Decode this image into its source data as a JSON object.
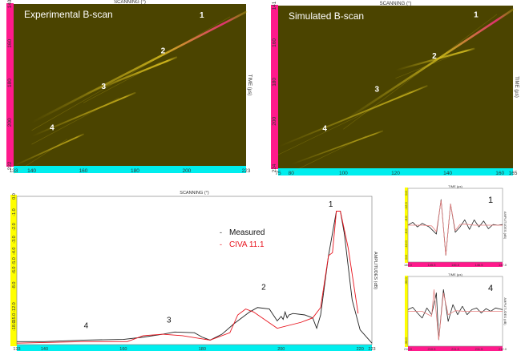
{
  "chart_data": [
    {
      "type": "heatmap",
      "title": "Experimental B-scan",
      "xlabel": "SCANNING (°)",
      "ylabel": "TIME (µs)",
      "xlim": [
        133,
        223
      ],
      "ylim": [
        140,
        222
      ],
      "xticks": [
        "133",
        "140",
        "160",
        "180",
        "200",
        "223"
      ],
      "xtick_values": [
        133,
        140,
        160,
        180,
        200,
        223
      ],
      "yticks": [
        "140",
        "160",
        "180",
        "200",
        "222"
      ],
      "ytick_values": [
        140,
        160,
        180,
        200,
        222
      ],
      "echoes": [
        {
          "label": "1",
          "label_at": [
            205,
            147
          ],
          "from": [
            140,
            200
          ],
          "to": [
            223,
            144
          ],
          "strength": 1.0
        },
        {
          "label": "2",
          "label_at": [
            190,
            165
          ],
          "from": [
            160,
            186
          ],
          "to": [
            196,
            167
          ],
          "strength": 0.8
        },
        {
          "label": "3",
          "label_at": [
            167,
            183
          ],
          "from": [
            140,
            207
          ],
          "to": [
            180,
            185
          ],
          "strength": 0.6
        },
        {
          "label": "4",
          "label_at": [
            147,
            204
          ],
          "from": [
            133,
            222
          ],
          "to": [
            160,
            206
          ],
          "strength": 0.5
        }
      ],
      "colors": {
        "background": "#4b4400",
        "echo": "#e0c420",
        "peak": "#e03070",
        "yaxis": "#ff1a8c",
        "xaxis": "#00eeee"
      }
    },
    {
      "type": "heatmap",
      "title": "Simulated B-scan",
      "xlabel": "SCANNING (°)",
      "ylabel": "TIME (µs)",
      "xlim": [
        75,
        165
      ],
      "ylim": [
        141,
        224
      ],
      "xticks": [
        "75",
        "80",
        "100",
        "120",
        "140",
        "160",
        "165"
      ],
      "xtick_values": [
        75,
        80,
        100,
        120,
        140,
        160,
        165
      ],
      "yticks": [
        "141",
        "160",
        "180",
        "200",
        "224"
      ],
      "ytick_values": [
        141,
        160,
        180,
        200,
        224
      ],
      "echoes": [
        {
          "label": "1",
          "label_at": [
            150,
            147
          ],
          "from": [
            100,
            200
          ],
          "to": [
            165,
            143
          ],
          "strength": 1.0
        },
        {
          "label": "2",
          "label_at": [
            134,
            168
          ],
          "from": [
            120,
            174
          ],
          "to": [
            150,
            163
          ],
          "strength": 0.8
        },
        {
          "label": "3",
          "label_at": [
            112,
            185
          ],
          "from": [
            75,
            213
          ],
          "to": [
            132,
            182
          ],
          "strength": 0.6
        },
        {
          "label": "4",
          "label_at": [
            92,
            205
          ],
          "from": [
            80,
            222
          ],
          "to": [
            115,
            205
          ],
          "strength": 0.45
        }
      ],
      "colors": {
        "background": "#4b4400",
        "echo": "#d8c020",
        "peak": "#e03070",
        "yaxis": "#ff1a8c",
        "xaxis": "#00eeee"
      }
    },
    {
      "type": "line",
      "title": "SCANNING (°)",
      "xlabel": "SCANNING (°)",
      "ylabel": "AMPLITUDES (dB)",
      "xlim": [
        133,
        223
      ],
      "ylim": [
        0,
        1
      ],
      "xticks": [
        "133",
        "140",
        "160",
        "180",
        "200",
        "220",
        "223"
      ],
      "xtick_values": [
        133,
        140,
        160,
        180,
        200,
        220,
        223
      ],
      "yticks": [
        "0.0",
        "-1.0",
        "-2.0",
        "-3.0",
        "-4.0",
        "-5.0",
        "-6.0",
        "-8.0",
        "-12.0",
        "-15.0",
        "-18.0"
      ],
      "ytick_values_db": [
        0,
        -1,
        -2,
        -3,
        -4,
        -5,
        -6,
        -8,
        -12,
        -15,
        -18
      ],
      "legend": {
        "placement": "top-right",
        "entries": [
          "Measured",
          "CIVA 11.1"
        ]
      },
      "annotations": [
        {
          "label": "1",
          "at": [
            212,
            0.93
          ]
        },
        {
          "label": "2",
          "at": [
            195,
            0.37
          ]
        },
        {
          "label": "3",
          "at": [
            171,
            0.15
          ]
        },
        {
          "label": "4",
          "at": [
            150,
            0.11
          ]
        }
      ],
      "series": [
        {
          "name": "Measured",
          "color": "#222222",
          "x": [
            133,
            140,
            150,
            160,
            165,
            170,
            173,
            178,
            180,
            182,
            185,
            188,
            192,
            194,
            197,
            198,
            199,
            200,
            200.5,
            201,
            201.5,
            202,
            203,
            206,
            208,
            209,
            210,
            212,
            214,
            215,
            216,
            218,
            220,
            223
          ],
          "y": [
            0.02,
            0.02,
            0.03,
            0.035,
            0.05,
            0.07,
            0.085,
            0.08,
            0.05,
            0.03,
            0.07,
            0.14,
            0.22,
            0.25,
            0.24,
            0.2,
            0.16,
            0.19,
            0.17,
            0.22,
            0.18,
            0.2,
            0.21,
            0.2,
            0.18,
            0.11,
            0.2,
            0.6,
            0.9,
            0.9,
            0.75,
            0.3,
            0.1,
            0.01
          ]
        },
        {
          "name": "CIVA 11.1",
          "color": "#e8141e",
          "x": [
            133,
            150,
            161,
            165,
            170,
            175,
            182,
            187,
            189,
            191,
            193,
            199,
            205,
            208,
            210,
            212,
            213,
            214,
            215,
            217,
            219.5
          ],
          "y": [
            0.01,
            0.02,
            0.02,
            0.06,
            0.07,
            0.06,
            0.03,
            0.08,
            0.2,
            0.24,
            0.22,
            0.11,
            0.15,
            0.18,
            0.25,
            0.6,
            0.62,
            0.9,
            0.9,
            0.65,
            0.21
          ]
        }
      ]
    },
    {
      "type": "line",
      "title": "TIME (µs)",
      "label": "1",
      "xlabel": "TIME (µs)",
      "ylabel": "AMPLITUDES (dB)",
      "xlim": [
        145.0,
        147.0
      ],
      "ylim": [
        -1,
        1
      ],
      "xticks": [
        "145.0",
        "145.5",
        "146.0",
        "146.5",
        "147.0"
      ],
      "xtick_values": [
        145.0,
        145.5,
        146.0,
        146.5,
        147.0
      ],
      "yticks": [
        "0.0",
        "-12.0",
        "-6.0",
        "-6.0",
        "-12.0",
        "0.0"
      ],
      "series": [
        {
          "name": "Measured",
          "color": "#222222",
          "x": [
            145.0,
            145.1,
            145.2,
            145.3,
            145.45,
            145.6,
            145.7,
            145.8,
            145.9,
            146.0,
            146.1,
            146.2,
            146.3,
            146.4,
            146.5,
            146.6,
            146.7,
            146.8,
            146.9,
            147.0
          ],
          "y": [
            0,
            0.08,
            -0.05,
            0.05,
            -0.05,
            -0.25,
            0.72,
            -0.85,
            0.6,
            -0.2,
            -0.05,
            0.15,
            -0.12,
            0.15,
            -0.05,
            0.12,
            -0.1,
            0.02,
            0,
            0.02
          ]
        },
        {
          "name": "CIVA 11.1",
          "color": "#e88080",
          "x": [
            145.0,
            145.3,
            145.5,
            145.6,
            145.7,
            145.8,
            145.9,
            146.0,
            146.1,
            146.2,
            146.4,
            146.7,
            147.0
          ],
          "y": [
            0,
            0,
            -0.02,
            -0.18,
            0.7,
            -0.85,
            0.6,
            -0.15,
            0.02,
            0.03,
            0,
            0,
            0
          ]
        }
      ]
    },
    {
      "type": "line",
      "title": "TIME (µs)",
      "label": "4",
      "xlabel": "TIME (µs)",
      "ylabel": "AMPLITUDES (dB)",
      "xlim": [
        210.0,
        212.0
      ],
      "ylim": [
        -1,
        1
      ],
      "xticks": [
        "210.0",
        "210.5",
        "211.0",
        "211.5",
        "212.0"
      ],
      "xtick_values": [
        210.0,
        210.5,
        211.0,
        211.5,
        212.0
      ],
      "yticks": [
        "-30.0",
        "-30.0"
      ],
      "series": [
        {
          "name": "Measured",
          "color": "#222222",
          "x": [
            210.0,
            210.1,
            210.2,
            210.3,
            210.4,
            210.5,
            210.6,
            210.65,
            210.75,
            210.85,
            210.95,
            211.05,
            211.15,
            211.25,
            211.35,
            211.45,
            211.55,
            211.65,
            211.75,
            211.85,
            212.0
          ],
          "y": [
            0.05,
            0.12,
            -0.05,
            -0.2,
            0.1,
            -0.1,
            0.55,
            -0.85,
            0.65,
            -0.3,
            0.2,
            -0.1,
            0.15,
            -0.1,
            0.05,
            0.1,
            -0.05,
            0.08,
            0,
            0.1,
            0.05
          ]
        },
        {
          "name": "CIVA 11.1",
          "color": "#e88080",
          "x": [
            210.0,
            210.3,
            210.5,
            210.55,
            210.65,
            210.75,
            210.85,
            211.0,
            211.2,
            212.0
          ],
          "y": [
            0,
            0,
            -0.15,
            0.65,
            -0.85,
            0.55,
            -0.1,
            0.02,
            0,
            0
          ]
        }
      ]
    }
  ]
}
